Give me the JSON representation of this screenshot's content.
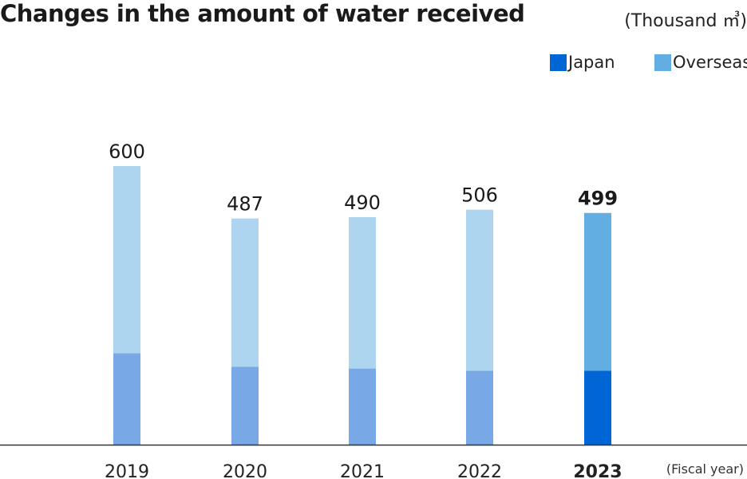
{
  "chart_data": {
    "type": "bar",
    "stacked": true,
    "title": "Changes in the amount of water received",
    "unit_label": "(Thousand ㎥)",
    "xlabel": "(Fiscal year)",
    "categories": [
      "2019",
      "2020",
      "2021",
      "2022",
      "2023"
    ],
    "totals": [
      600,
      487,
      490,
      506,
      499
    ],
    "highlight_category": "2023",
    "series": [
      {
        "name": "Japan",
        "values": [
          197,
          168,
          164,
          159,
          159
        ]
      },
      {
        "name": "Overseas",
        "values": [
          403,
          319,
          326,
          347,
          340
        ]
      }
    ],
    "ylim": [
      0,
      600
    ],
    "grid": false,
    "legend_position": "top-right",
    "colors": {
      "japan_highlight": "#0066D6",
      "overseas_highlight": "#62AEE3",
      "japan_past": "#78A9E6",
      "overseas_past": "#ADD5EF",
      "axis": "#333333"
    }
  }
}
